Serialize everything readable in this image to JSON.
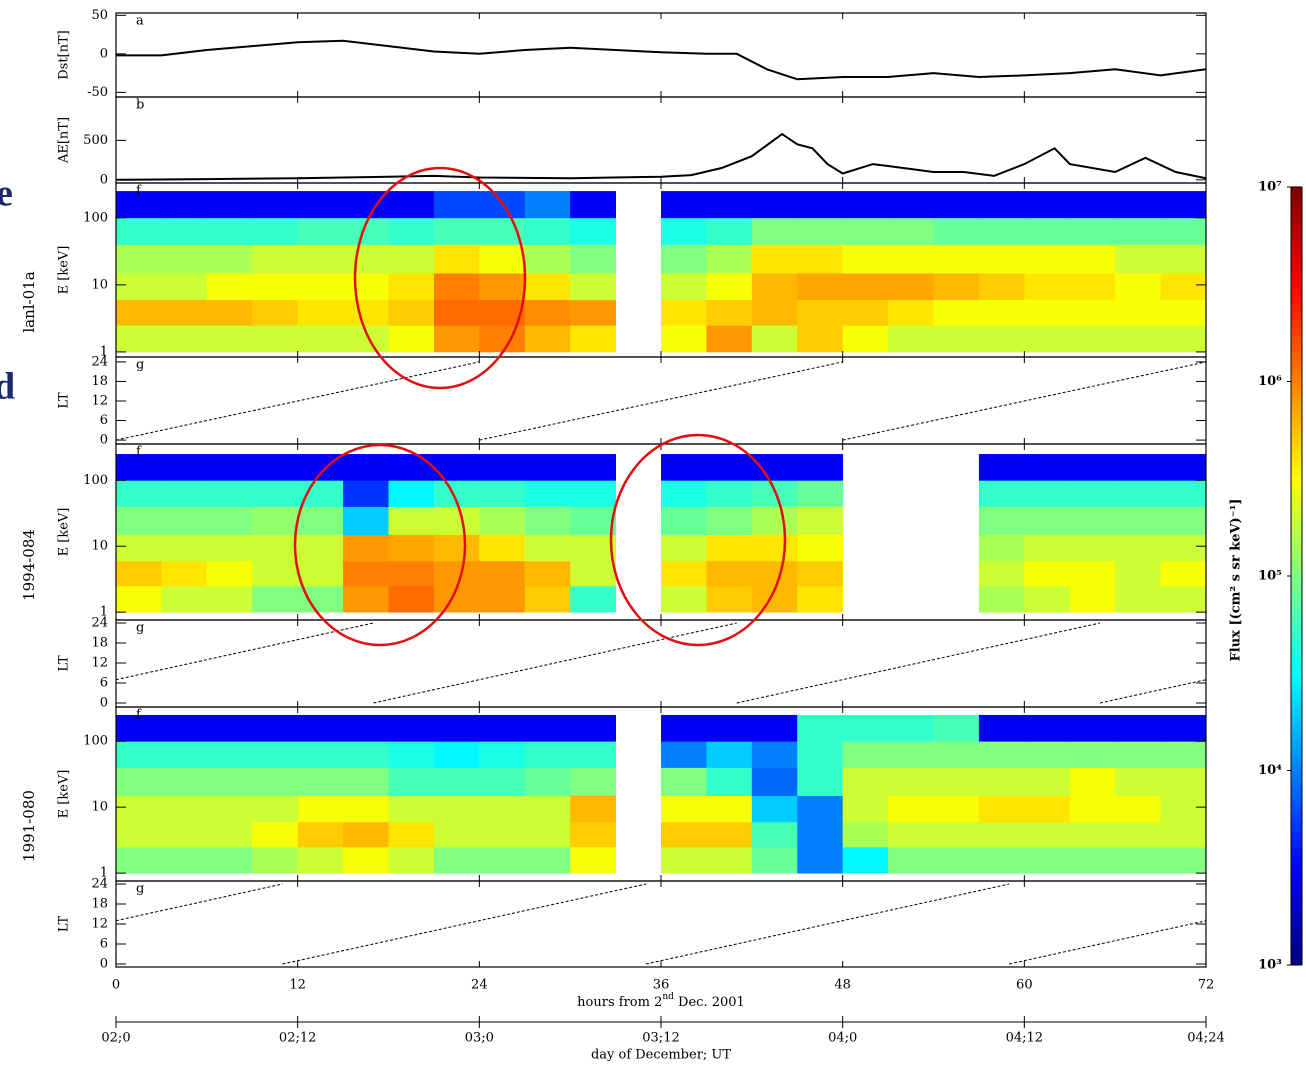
{
  "chart_data": [
    {
      "type": "line",
      "panel_label": "a",
      "ylabel": "Dst[nT]",
      "ylim": [
        -56,
        53
      ],
      "yticks": [
        -50,
        0,
        50
      ],
      "color": "#000000",
      "x": [
        0,
        3,
        6,
        9,
        12,
        15,
        18,
        21,
        24,
        27,
        30,
        33,
        36,
        39,
        41,
        43,
        45,
        48,
        51,
        54,
        57,
        60,
        63,
        66,
        69,
        72
      ],
      "values": [
        -2,
        -2,
        5,
        10,
        15,
        17,
        10,
        3,
        0,
        5,
        8,
        5,
        2,
        0,
        0,
        -20,
        -33,
        -30,
        -30,
        -25,
        -30,
        -28,
        -25,
        -20,
        -28,
        -20
      ]
    },
    {
      "type": "line",
      "panel_label": "b",
      "ylabel": "AE[nT]",
      "ylim": [
        -40,
        1050
      ],
      "yticks": [
        0,
        500
      ],
      "color": "#000000",
      "x": [
        0,
        6,
        12,
        18,
        21,
        24,
        30,
        36,
        38,
        40,
        42,
        44,
        45,
        46,
        47,
        48,
        50,
        52,
        54,
        56,
        58,
        60,
        62,
        63,
        66,
        68,
        70,
        72
      ],
      "values": [
        0,
        10,
        20,
        40,
        50,
        30,
        20,
        40,
        60,
        150,
        300,
        580,
        450,
        400,
        200,
        80,
        200,
        150,
        100,
        100,
        50,
        200,
        400,
        200,
        100,
        280,
        100,
        20
      ]
    },
    {
      "type": "heatmap",
      "panel_label": "f",
      "satellite": "lanl-01a",
      "ylabel": "E [keV]",
      "log": true,
      "ylim": [
        0.84,
        330
      ],
      "yticks": [
        1,
        10,
        100
      ],
      "x_bins": [
        0,
        3,
        6,
        9,
        12,
        15,
        18,
        21,
        24,
        27,
        30,
        33,
        36,
        39,
        42,
        45,
        48,
        51,
        54,
        57,
        60,
        63,
        66,
        69,
        72
      ],
      "y_bins": [
        1,
        2.5,
        6,
        15,
        40,
        100,
        250
      ],
      "values": [
        [
          200000.0,
          200000.0,
          200000.0,
          200000.0,
          200000.0,
          200000.0,
          300000.0,
          800000.0,
          1000000.0,
          600000.0,
          400000.0,
          null,
          300000.0,
          800000.0,
          200000.0,
          500000.0,
          300000.0,
          200000.0,
          200000.0,
          200000.0,
          200000.0,
          200000.0,
          200000.0,
          200000.0
        ],
        [
          600000.0,
          600000.0,
          600000.0,
          500000.0,
          400000.0,
          400000.0,
          500000.0,
          1200000.0,
          1200000.0,
          900000.0,
          800000.0,
          null,
          400000.0,
          500000.0,
          600000.0,
          500000.0,
          500000.0,
          400000.0,
          300000.0,
          300000.0,
          300000.0,
          300000.0,
          300000.0,
          300000.0
        ],
        [
          200000.0,
          200000.0,
          300000.0,
          300000.0,
          300000.0,
          300000.0,
          400000.0,
          1000000.0,
          800000.0,
          400000.0,
          200000.0,
          null,
          200000.0,
          300000.0,
          600000.0,
          700000.0,
          700000.0,
          700000.0,
          600000.0,
          500000.0,
          400000.0,
          400000.0,
          300000.0,
          400000.0
        ],
        [
          150000.0,
          150000.0,
          150000.0,
          200000.0,
          200000.0,
          200000.0,
          200000.0,
          400000.0,
          300000.0,
          150000.0,
          100000.0,
          null,
          100000.0,
          150000.0,
          400000.0,
          400000.0,
          300000.0,
          300000.0,
          300000.0,
          300000.0,
          300000.0,
          300000.0,
          200000.0,
          200000.0
        ],
        [
          50000.0,
          50000.0,
          50000.0,
          50000.0,
          60000.0,
          60000.0,
          50000.0,
          60000.0,
          60000.0,
          50000.0,
          40000.0,
          null,
          40000.0,
          50000.0,
          100000.0,
          100000.0,
          100000.0,
          100000.0,
          80000.0,
          80000.0,
          80000.0,
          80000.0,
          80000.0,
          80000.0
        ],
        [
          3000.0,
          3000.0,
          3000.0,
          3000.0,
          3000.0,
          3000.0,
          3000.0,
          6000.0,
          6000.0,
          10000.0,
          3000.0,
          null,
          3000.0,
          3000.0,
          3000.0,
          3000.0,
          3000.0,
          3000.0,
          3000.0,
          3000.0,
          3000.0,
          3000.0,
          3000.0,
          3000.0
        ]
      ]
    },
    {
      "type": "line",
      "panel_label": "g",
      "ylabel": "LT",
      "ylim": [
        -1.2,
        25.5
      ],
      "yticks": [
        0,
        6,
        12,
        18,
        24
      ],
      "color": "#000000",
      "dashed": true,
      "x": [
        0,
        24,
        24,
        24,
        48,
        48,
        48,
        72
      ],
      "values": [
        0,
        24,
        null,
        0,
        24,
        null,
        0,
        24
      ]
    },
    {
      "type": "heatmap",
      "panel_label": "f",
      "satellite": "1994-084",
      "ylabel": "E [keV]",
      "log": true,
      "ylim": [
        0.76,
        355
      ],
      "yticks": [
        1,
        10,
        100
      ],
      "x_bins": [
        0,
        3,
        6,
        9,
        12,
        15,
        18,
        21,
        24,
        27,
        30,
        33,
        36,
        39,
        42,
        45,
        48,
        51,
        54,
        57,
        60,
        63,
        66,
        69,
        72
      ],
      "y_bins": [
        1,
        2.5,
        6,
        15,
        40,
        100,
        250
      ],
      "values": [
        [
          300000.0,
          200000.0,
          200000.0,
          100000.0,
          100000.0,
          800000.0,
          1200000.0,
          800000.0,
          800000.0,
          500000.0,
          50000.0,
          null,
          200000.0,
          500000.0,
          600000.0,
          400000.0,
          null,
          null,
          null,
          150000.0,
          200000.0,
          300000.0,
          200000.0,
          200000.0
        ],
        [
          500000.0,
          400000.0,
          300000.0,
          200000.0,
          200000.0,
          1000000.0,
          1000000.0,
          800000.0,
          800000.0,
          600000.0,
          200000.0,
          null,
          400000.0,
          600000.0,
          600000.0,
          500000.0,
          null,
          null,
          null,
          200000.0,
          300000.0,
          300000.0,
          200000.0,
          300000.0
        ],
        [
          200000.0,
          200000.0,
          200000.0,
          200000.0,
          200000.0,
          800000.0,
          700000.0,
          600000.0,
          400000.0,
          200000.0,
          200000.0,
          null,
          200000.0,
          400000.0,
          400000.0,
          300000.0,
          null,
          null,
          null,
          150000.0,
          200000.0,
          200000.0,
          200000.0,
          200000.0
        ],
        [
          100000.0,
          100000.0,
          100000.0,
          120000.0,
          100000.0,
          20000.0,
          200000.0,
          200000.0,
          150000.0,
          100000.0,
          80000.0,
          null,
          80000.0,
          100000.0,
          150000.0,
          200000.0,
          null,
          null,
          null,
          100000.0,
          100000.0,
          100000.0,
          100000.0,
          100000.0
        ],
        [
          50000.0,
          50000.0,
          50000.0,
          50000.0,
          50000.0,
          5000.0,
          30000.0,
          50000.0,
          50000.0,
          40000.0,
          40000.0,
          null,
          40000.0,
          50000.0,
          60000.0,
          80000.0,
          null,
          null,
          null,
          50000.0,
          50000.0,
          50000.0,
          50000.0,
          50000.0
        ],
        [
          3000.0,
          3000.0,
          3000.0,
          3000.0,
          3000.0,
          3000.0,
          3000.0,
          3000.0,
          3000.0,
          3000.0,
          3000.0,
          null,
          3000.0,
          3000.0,
          3000.0,
          3000.0,
          null,
          null,
          null,
          3000.0,
          3000.0,
          3000.0,
          3000.0,
          3000.0
        ]
      ]
    },
    {
      "type": "line",
      "panel_label": "g",
      "ylabel": "LT",
      "ylim": [
        -1.2,
        24.9
      ],
      "yticks": [
        0,
        6,
        12,
        18,
        24
      ],
      "color": "#000000",
      "dashed": true,
      "x": [
        0,
        17,
        17,
        17,
        41,
        41,
        41,
        65,
        65,
        65,
        72
      ],
      "values": [
        7,
        24,
        null,
        0,
        24,
        null,
        0,
        24,
        null,
        0,
        7
      ]
    },
    {
      "type": "heatmap",
      "panel_label": "f",
      "satellite": "1991-080",
      "ylabel": "E [keV]",
      "log": true,
      "ylim": [
        0.76,
        330
      ],
      "yticks": [
        1,
        10,
        100
      ],
      "x_bins": [
        0,
        3,
        6,
        9,
        12,
        15,
        18,
        21,
        24,
        27,
        30,
        33,
        36,
        39,
        42,
        45,
        48,
        51,
        54,
        57,
        60,
        63,
        66,
        69,
        72
      ],
      "y_bins": [
        1,
        2.5,
        6,
        15,
        40,
        100,
        250
      ],
      "values": [
        [
          100000.0,
          100000.0,
          100000.0,
          150000.0,
          200000.0,
          300000.0,
          200000.0,
          100000.0,
          100000.0,
          100000.0,
          300000.0,
          null,
          200000.0,
          200000.0,
          80000.0,
          10000.0,
          30000.0,
          100000.0,
          100000.0,
          100000.0,
          100000.0,
          100000.0,
          100000.0,
          100000.0
        ],
        [
          200000.0,
          200000.0,
          200000.0,
          300000.0,
          500000.0,
          600000.0,
          400000.0,
          200000.0,
          200000.0,
          200000.0,
          500000.0,
          null,
          500000.0,
          500000.0,
          60000.0,
          10000.0,
          150000.0,
          200000.0,
          200000.0,
          200000.0,
          200000.0,
          200000.0,
          200000.0,
          200000.0
        ],
        [
          200000.0,
          200000.0,
          200000.0,
          200000.0,
          300000.0,
          300000.0,
          200000.0,
          200000.0,
          200000.0,
          200000.0,
          600000.0,
          null,
          300000.0,
          300000.0,
          20000.0,
          10000.0,
          200000.0,
          300000.0,
          300000.0,
          400000.0,
          400000.0,
          300000.0,
          300000.0,
          200000.0
        ],
        [
          100000.0,
          100000.0,
          100000.0,
          100000.0,
          100000.0,
          100000.0,
          60000.0,
          60000.0,
          60000.0,
          80000.0,
          100000.0,
          null,
          100000.0,
          50000.0,
          8000.0,
          50000.0,
          200000.0,
          200000.0,
          200000.0,
          200000.0,
          200000.0,
          300000.0,
          200000.0,
          200000.0
        ],
        [
          50000.0,
          50000.0,
          50000.0,
          50000.0,
          50000.0,
          50000.0,
          40000.0,
          30000.0,
          40000.0,
          50000.0,
          50000.0,
          null,
          10000.0,
          20000.0,
          10000.0,
          50000.0,
          100000.0,
          100000.0,
          100000.0,
          100000.0,
          100000.0,
          100000.0,
          100000.0,
          100000.0
        ],
        [
          3000.0,
          3000.0,
          3000.0,
          3000.0,
          3000.0,
          3000.0,
          3000.0,
          3000.0,
          3000.0,
          3000.0,
          3000.0,
          null,
          3000.0,
          3000.0,
          3000.0,
          50000.0,
          50000.0,
          50000.0,
          60000.0,
          3000.0,
          3000.0,
          3000.0,
          3000.0,
          3000.0
        ]
      ]
    },
    {
      "type": "line",
      "panel_label": "g",
      "ylabel": "LT",
      "ylim": [
        -0.9,
        24.9
      ],
      "yticks": [
        0,
        6,
        12,
        18,
        24
      ],
      "color": "#000000",
      "dashed": true,
      "x": [
        0,
        11,
        11,
        11,
        35,
        35,
        35,
        59,
        59,
        59,
        72
      ],
      "values": [
        13,
        24,
        null,
        0,
        24,
        null,
        0,
        24,
        null,
        0,
        13
      ]
    }
  ],
  "shared_x": {
    "xlim": [
      0,
      72
    ],
    "xticks": [
      0,
      12,
      24,
      36,
      48,
      60,
      72
    ],
    "xlabel": {
      "before": "hours from 2",
      "sup": "nd",
      "after": " Dec. 2001"
    },
    "day_ticks": [
      {
        "value": 0,
        "label": "02;0"
      },
      {
        "value": 12,
        "label": "02;12"
      },
      {
        "value": 24,
        "label": "03;0"
      },
      {
        "value": 36,
        "label": "03;12"
      },
      {
        "value": 48,
        "label": "04;0"
      },
      {
        "value": 60,
        "label": "04;12"
      },
      {
        "value": 72,
        "label": "04;24"
      }
    ],
    "day_label": "day of December; UT"
  },
  "colorbar": {
    "label": "Flux [(cm² s sr keV)⁻¹]",
    "log": true,
    "lim": [
      1000,
      10000000
    ],
    "ticks": [
      {
        "value": 1000,
        "label": "10³"
      },
      {
        "value": 10000,
        "label": "10⁴"
      },
      {
        "value": 100000,
        "label": "10⁵"
      },
      {
        "value": 1000000,
        "label": "10⁶"
      },
      {
        "value": 10000000,
        "label": "10⁷"
      }
    ]
  },
  "fragments": [
    "e",
    "d"
  ]
}
